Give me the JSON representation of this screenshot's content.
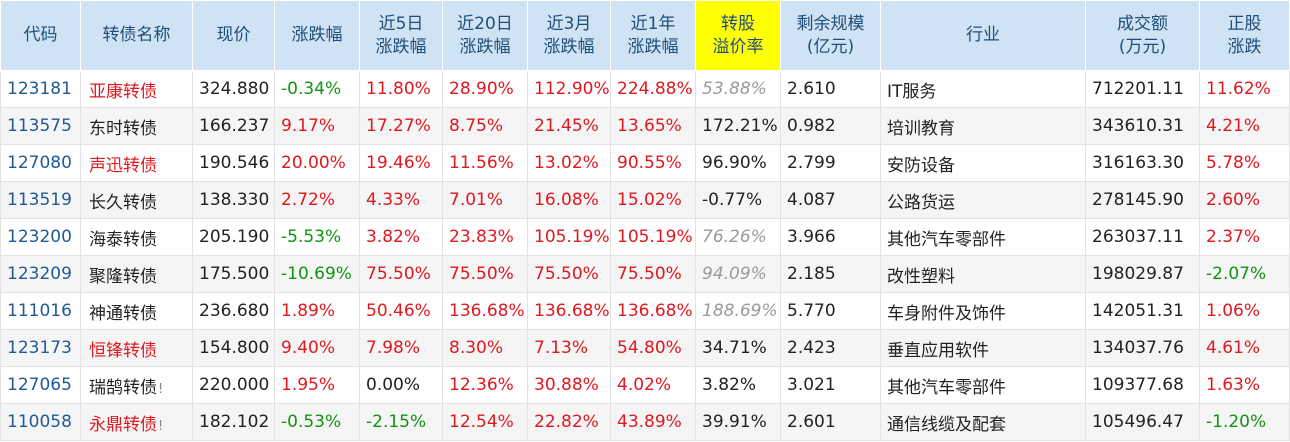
{
  "colors": {
    "up": "#e0181e",
    "down": "#119411",
    "flat": "#222222",
    "header_bg": "#cfe3f4",
    "highlight": "#ffff00"
  },
  "headers": [
    [
      "代码"
    ],
    [
      "转债名称"
    ],
    [
      "现价"
    ],
    [
      "涨跌幅"
    ],
    [
      "近5日",
      "涨跌幅"
    ],
    [
      "近20日",
      "涨跌幅"
    ],
    [
      "近3月",
      "涨跌幅"
    ],
    [
      "近1年",
      "涨跌幅"
    ],
    [
      "转股",
      "溢价率"
    ],
    [
      "剩余规模",
      "(亿元)"
    ],
    [
      "行业"
    ],
    [
      "成交额",
      "(万元)"
    ],
    [
      "正股",
      "涨跌"
    ]
  ],
  "rows": [
    {
      "code": "123181",
      "name": "亚康转债",
      "name_red": true,
      "price": "324.880",
      "chg": "-0.34%",
      "d5": "11.80%",
      "d20": "28.90%",
      "m3": "112.90%",
      "y1": "224.88%",
      "premium": "53.88%",
      "premium_grey": true,
      "scale": "2.610",
      "industry": "IT服务",
      "turnover": "712201.11",
      "stock_chg": "11.62%",
      "mark": ""
    },
    {
      "code": "113575",
      "name": "东时转债",
      "name_red": false,
      "price": "166.237",
      "chg": "9.17%",
      "d5": "17.27%",
      "d20": "8.75%",
      "m3": "21.45%",
      "y1": "13.65%",
      "premium": "172.21%",
      "premium_grey": false,
      "scale": "0.982",
      "industry": "培训教育",
      "turnover": "343610.31",
      "stock_chg": "4.21%",
      "mark": ""
    },
    {
      "code": "127080",
      "name": "声迅转债",
      "name_red": true,
      "price": "190.546",
      "chg": "20.00%",
      "d5": "19.46%",
      "d20": "11.56%",
      "m3": "13.02%",
      "y1": "90.55%",
      "premium": "96.90%",
      "premium_grey": false,
      "scale": "2.799",
      "industry": "安防设备",
      "turnover": "316163.30",
      "stock_chg": "5.78%",
      "mark": ""
    },
    {
      "code": "113519",
      "name": "长久转债",
      "name_red": false,
      "price": "138.330",
      "chg": "2.72%",
      "d5": "4.33%",
      "d20": "7.01%",
      "m3": "16.08%",
      "y1": "15.02%",
      "premium": "-0.77%",
      "premium_grey": false,
      "scale": "4.087",
      "industry": "公路货运",
      "turnover": "278145.90",
      "stock_chg": "2.60%",
      "mark": ""
    },
    {
      "code": "123200",
      "name": "海泰转债",
      "name_red": false,
      "price": "205.190",
      "chg": "-5.53%",
      "d5": "3.82%",
      "d20": "23.83%",
      "m3": "105.19%",
      "y1": "105.19%",
      "premium": "76.26%",
      "premium_grey": true,
      "scale": "3.966",
      "industry": "其他汽车零部件",
      "turnover": "263037.11",
      "stock_chg": "2.37%",
      "mark": ""
    },
    {
      "code": "123209",
      "name": "聚隆转债",
      "name_red": false,
      "price": "175.500",
      "chg": "-10.69%",
      "d5": "75.50%",
      "d20": "75.50%",
      "m3": "75.50%",
      "y1": "75.50%",
      "premium": "94.09%",
      "premium_grey": true,
      "scale": "2.185",
      "industry": "改性塑料",
      "turnover": "198029.87",
      "stock_chg": "-2.07%",
      "mark": ""
    },
    {
      "code": "111016",
      "name": "神通转债",
      "name_red": false,
      "price": "236.680",
      "chg": "1.89%",
      "d5": "50.46%",
      "d20": "136.68%",
      "m3": "136.68%",
      "y1": "136.68%",
      "premium": "188.69%",
      "premium_grey": true,
      "scale": "5.770",
      "industry": "车身附件及饰件",
      "turnover": "142051.31",
      "stock_chg": "1.06%",
      "mark": ""
    },
    {
      "code": "123173",
      "name": "恒锋转债",
      "name_red": true,
      "price": "154.800",
      "chg": "9.40%",
      "d5": "7.98%",
      "d20": "8.30%",
      "m3": "7.13%",
      "y1": "54.80%",
      "premium": "34.71%",
      "premium_grey": false,
      "scale": "2.423",
      "industry": "垂直应用软件",
      "turnover": "134037.76",
      "stock_chg": "4.61%",
      "mark": ""
    },
    {
      "code": "127065",
      "name": "瑞鹄转债",
      "name_red": false,
      "price": "220.000",
      "chg": "1.95%",
      "d5": "0.00%",
      "d20": "12.36%",
      "m3": "30.88%",
      "y1": "4.02%",
      "premium": "3.82%",
      "premium_grey": false,
      "scale": "3.021",
      "industry": "其他汽车零部件",
      "turnover": "109377.68",
      "stock_chg": "1.63%",
      "mark": "!"
    },
    {
      "code": "110058",
      "name": "永鼎转债",
      "name_red": true,
      "price": "182.102",
      "chg": "-0.53%",
      "d5": "-2.15%",
      "d20": "12.54%",
      "m3": "22.82%",
      "y1": "43.89%",
      "premium": "39.91%",
      "premium_grey": false,
      "scale": "2.601",
      "industry": "通信线缆及配套",
      "turnover": "105496.47",
      "stock_chg": "-1.20%",
      "mark": "!"
    }
  ]
}
